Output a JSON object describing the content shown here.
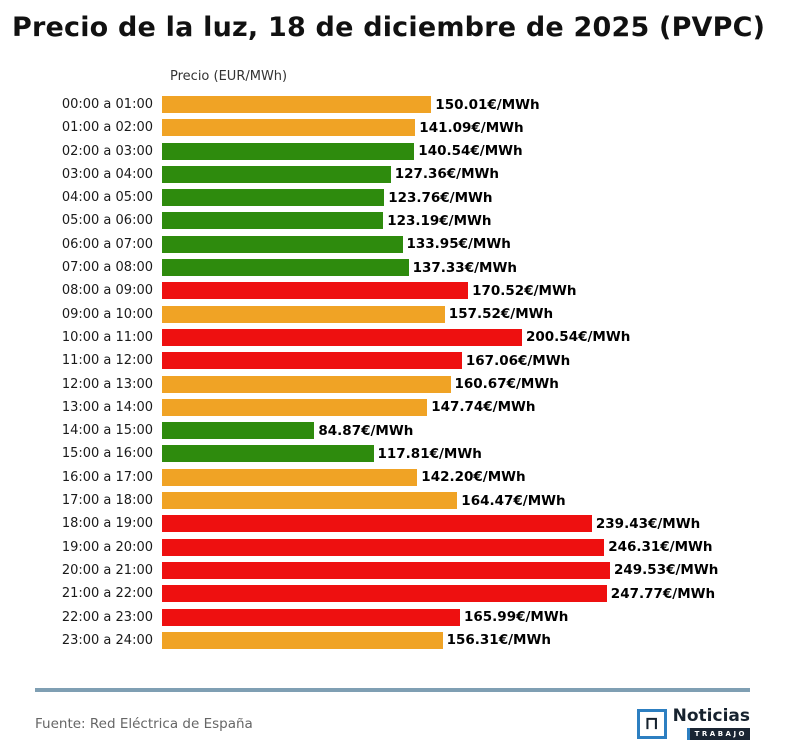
{
  "page": {
    "footer_source": "Fuente: Red Eléctrica de España",
    "logo": {
      "name": "Noticias",
      "sub": "TRABAJO"
    }
  },
  "chart_data": {
    "type": "bar",
    "orientation": "horizontal",
    "title": "Precio de la luz, 18 de diciembre de 2025 (PVPC)",
    "axis_label": "Precio (EUR/MWh)",
    "unit_suffix": "€/MWh",
    "categories": [
      "00:00 a 01:00",
      "01:00 a 02:00",
      "02:00 a 03:00",
      "03:00 a 04:00",
      "04:00 a 05:00",
      "05:00 a 06:00",
      "06:00 a 07:00",
      "07:00 a 08:00",
      "08:00 a 09:00",
      "09:00 a 10:00",
      "10:00 a 11:00",
      "11:00 a 12:00",
      "12:00 a 13:00",
      "13:00 a 14:00",
      "14:00 a 15:00",
      "15:00 a 16:00",
      "16:00 a 17:00",
      "17:00 a 18:00",
      "18:00 a 19:00",
      "19:00 a 20:00",
      "20:00 a 21:00",
      "21:00 a 22:00",
      "22:00 a 23:00",
      "23:00 a 24:00"
    ],
    "values": [
      150.01,
      141.09,
      140.54,
      127.36,
      123.76,
      123.19,
      133.95,
      137.33,
      170.52,
      157.52,
      200.54,
      167.06,
      160.67,
      147.74,
      84.87,
      117.81,
      142.2,
      164.47,
      239.43,
      246.31,
      249.53,
      247.77,
      165.99,
      156.31
    ],
    "colors": [
      "orange",
      "orange",
      "green",
      "green",
      "green",
      "green",
      "green",
      "green",
      "red",
      "orange",
      "red",
      "red",
      "orange",
      "orange",
      "green",
      "green",
      "orange",
      "orange",
      "red",
      "red",
      "red",
      "red",
      "red",
      "orange"
    ],
    "palette": {
      "orange": "#F0A325",
      "green": "#2E8B0D",
      "red": "#EE1010"
    },
    "xlim": [
      0,
      260
    ],
    "legend": false,
    "grid": false
  }
}
